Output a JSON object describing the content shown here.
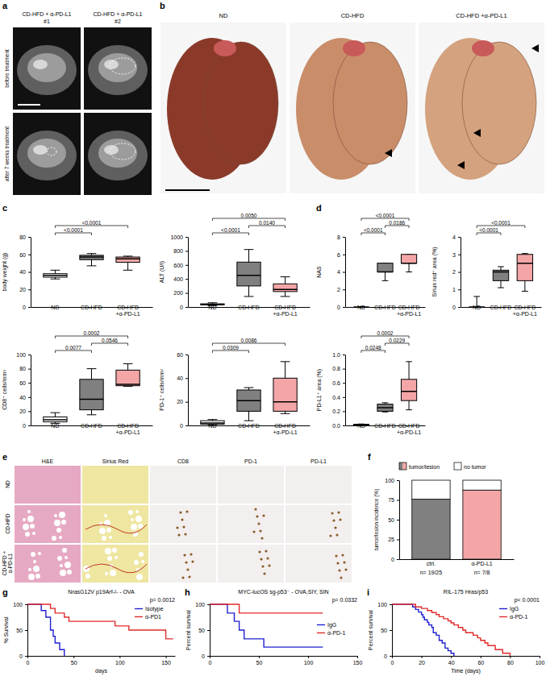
{
  "panel_letters": [
    "a",
    "b",
    "c",
    "d",
    "e",
    "f",
    "g",
    "h",
    "i"
  ],
  "panel_a": {
    "columns": [
      {
        "title": "CD-HFD + α-PD-L1",
        "id": "#1"
      },
      {
        "title": "CD-HFD + α-PD-L1",
        "id": "#2"
      }
    ],
    "rows": [
      "before treatment",
      "after 7 weeks treatment"
    ]
  },
  "panel_b": {
    "labels": [
      "ND",
      "CD-HFD",
      "CD-HFD +α-PD-L1"
    ]
  },
  "panel_e": {
    "columns": [
      "H&E",
      "Sirius Red",
      "CD8",
      "PD-1",
      "PD-L1"
    ],
    "rows": [
      "ND",
      "CD-HFD",
      "CD-HFD + α-PD-L1"
    ]
  },
  "chart_data": [
    {
      "type": "box",
      "y_label": "body weight (g)",
      "categories": [
        "ND",
        "CD-HFD",
        "CD-HFD +α-PD-L1"
      ],
      "colors": [
        "#ffffff",
        "#808080",
        "#f4a6a6"
      ],
      "boxes": [
        {
          "min": 32,
          "q1": 34,
          "median": 36,
          "q3": 38,
          "max": 42
        },
        {
          "min": 47,
          "q1": 54,
          "median": 57,
          "q3": 59,
          "max": 61
        },
        {
          "min": 42,
          "q1": 51,
          "median": 55,
          "q3": 57,
          "max": 58
        }
      ],
      "ylim": [
        0,
        80
      ],
      "yticks": [
        0,
        20,
        40,
        60,
        80
      ],
      "comparisons": [
        {
          "pair": [
            0,
            1
          ],
          "label": "<0.0001"
        },
        {
          "pair": [
            0,
            2
          ],
          "label": "<0.0001"
        }
      ]
    },
    {
      "type": "box",
      "y_label": "ALT (U/l)",
      "categories": [
        "ND",
        "CD-HFD",
        "CD-HFD +α-PD-L1"
      ],
      "colors": [
        "#ffffff",
        "#808080",
        "#f4a6a6"
      ],
      "boxes": [
        {
          "min": 20,
          "q1": 30,
          "median": 38,
          "q3": 45,
          "max": 60
        },
        {
          "min": 150,
          "q1": 300,
          "median": 450,
          "q3": 640,
          "max": 820
        },
        {
          "min": 150,
          "q1": 220,
          "median": 250,
          "q3": 330,
          "max": 430
        }
      ],
      "ylim": [
        0,
        1000
      ],
      "yticks": [
        0,
        200,
        400,
        600,
        800,
        1000
      ],
      "comparisons": [
        {
          "pair": [
            0,
            1
          ],
          "label": "<0.0001"
        },
        {
          "pair": [
            1,
            2
          ],
          "label": "0.0140"
        },
        {
          "pair": [
            0,
            2
          ],
          "label": "0.0050"
        }
      ]
    },
    {
      "type": "box",
      "y_label": "CD8⁺ cells/mm²",
      "categories": [
        "ND",
        "CD-HFD",
        "CD-HFD +α-PD-L1"
      ],
      "colors": [
        "#ffffff",
        "#808080",
        "#f4a6a6"
      ],
      "boxes": [
        {
          "min": 3,
          "q1": 5,
          "median": 8,
          "q3": 12,
          "max": 18
        },
        {
          "min": 15,
          "q1": 22,
          "median": 37,
          "q3": 65,
          "max": 80
        },
        {
          "min": 55,
          "q1": 56,
          "median": 58,
          "q3": 78,
          "max": 87
        }
      ],
      "ylim": [
        0,
        100
      ],
      "yticks": [
        0,
        20,
        40,
        60,
        80,
        100
      ],
      "comparisons": [
        {
          "pair": [
            0,
            1
          ],
          "label": "0.0077"
        },
        {
          "pair": [
            1,
            2
          ],
          "label": "0.0546"
        },
        {
          "pair": [
            0,
            2
          ],
          "label": "0.0002"
        }
      ]
    },
    {
      "type": "box",
      "y_label": "PD-1⁺ cells/mm²",
      "categories": [
        "ND",
        "CD-HFD",
        "CD-HFD +α-PD-L1"
      ],
      "colors": [
        "#ffffff",
        "#808080",
        "#f4a6a6"
      ],
      "boxes": [
        {
          "min": 0,
          "q1": 1,
          "median": 2,
          "q3": 4,
          "max": 5
        },
        {
          "min": 4,
          "q1": 12,
          "median": 21,
          "q3": 30,
          "max": 32
        },
        {
          "min": 10,
          "q1": 12,
          "median": 20,
          "q3": 40,
          "max": 54
        }
      ],
      "ylim": [
        0,
        60
      ],
      "yticks": [
        0,
        20,
        40,
        60
      ],
      "comparisons": [
        {
          "pair": [
            0,
            1
          ],
          "label": "0.0309"
        },
        {
          "pair": [
            0,
            2
          ],
          "label": "0.0086"
        }
      ]
    },
    {
      "type": "box",
      "y_label": "NAS",
      "categories": [
        "ND",
        "CD-HFD",
        "CD-HFD +α-PD-L1"
      ],
      "colors": [
        "#ffffff",
        "#808080",
        "#f4a6a6"
      ],
      "boxes": [
        {
          "min": 0,
          "q1": 0,
          "median": 0,
          "q3": 0,
          "max": 0
        },
        {
          "min": 3,
          "q1": 4,
          "median": 4,
          "q3": 5,
          "max": 5
        },
        {
          "min": 4,
          "q1": 5,
          "median": 5,
          "q3": 6,
          "max": 6
        }
      ],
      "ylim": [
        0,
        8
      ],
      "yticks": [
        0,
        2,
        4,
        6,
        8
      ],
      "comparisons": [
        {
          "pair": [
            0,
            1
          ],
          "label": "<0.0001"
        },
        {
          "pair": [
            1,
            2
          ],
          "label": "0.0186"
        },
        {
          "pair": [
            0,
            2
          ],
          "label": "<0.0001"
        }
      ]
    },
    {
      "type": "box",
      "y_label": "Sirius red⁺ area (%)",
      "categories": [
        "ND",
        "CD-HFD",
        "CD-HFD +α-PD-L1"
      ],
      "colors": [
        "#ffffff",
        "#808080",
        "#f4a6a6"
      ],
      "boxes": [
        {
          "min": 0,
          "q1": 0,
          "median": 0,
          "q3": 0,
          "max": 0.6
        },
        {
          "min": 1.1,
          "q1": 1.5,
          "median": 2.0,
          "q3": 2.1,
          "max": 2.3
        },
        {
          "min": 0.9,
          "q1": 1.5,
          "median": 2.5,
          "q3": 3.0,
          "max": 3.05
        }
      ],
      "ylim": [
        0,
        4
      ],
      "yticks": [
        0,
        1,
        2,
        3,
        4
      ],
      "comparisons": [
        {
          "pair": [
            0,
            1
          ],
          "label": "<0.0001"
        },
        {
          "pair": [
            0,
            2
          ],
          "label": "<0.0001"
        }
      ]
    },
    {
      "type": "box",
      "y_label": "PD-L1⁺ area (%)",
      "categories": [
        "ND",
        "CD-HFD",
        "CD-HFD +α-PD-L1"
      ],
      "colors": [
        "#ffffff",
        "#808080",
        "#f4a6a6"
      ],
      "boxes": [
        {
          "min": 0,
          "q1": 0.005,
          "median": 0.01,
          "q3": 0.015,
          "max": 0.02
        },
        {
          "min": 0.19,
          "q1": 0.2,
          "median": 0.25,
          "q3": 0.3,
          "max": 0.32
        },
        {
          "min": 0.22,
          "q1": 0.35,
          "median": 0.48,
          "q3": 0.65,
          "max": 0.9
        }
      ],
      "ylim": [
        0,
        1
      ],
      "yticks": [
        {
          "value": 0,
          "label": "0.0"
        },
        0.2,
        0.4,
        0.6,
        0.8,
        {
          "value": 1,
          "label": "1.0"
        }
      ],
      "comparisons": [
        {
          "pair": [
            0,
            1
          ],
          "label": "0.0248"
        },
        {
          "pair": [
            1,
            2
          ],
          "label": "0.0229"
        },
        {
          "pair": [
            0,
            2
          ],
          "label": "0.0002"
        }
      ]
    },
    {
      "type": "bar",
      "stacked": true,
      "legend": "top",
      "y_label": "tumor/lesion incidence (%)",
      "categories": [
        "ctrl.",
        "α-PD-L1"
      ],
      "annotations": [
        "n= 19/25",
        "n= 7/8"
      ],
      "series": [
        {
          "name": "tumor/lesion",
          "colors": [
            "#808080",
            "#f4a6a6"
          ],
          "values": [
            76,
            87.5
          ]
        },
        {
          "name": "no tumor",
          "color": "#ffffff",
          "values": [
            24,
            12.5
          ]
        }
      ],
      "ylim": [
        0,
        100
      ],
      "yticks": [
        0,
        25,
        50,
        75,
        100
      ]
    },
    {
      "type": "line",
      "line_style": "step",
      "legend": "top-right",
      "title": "NrasG12V p19Arf-/- - OVA",
      "annotation": "p= 0.0012",
      "x_label": "days",
      "y_label": "% Survival",
      "xlim": [
        0,
        160
      ],
      "xticks": [
        0,
        50,
        100,
        150
      ],
      "ylim": [
        0,
        100
      ],
      "yticks": [
        0,
        50,
        100
      ],
      "series": [
        {
          "name": "Isotype",
          "color": "#1f1fd1",
          "x": [
            0,
            15,
            20,
            25,
            28,
            30,
            35,
            40
          ],
          "values": [
            100,
            88,
            75,
            50,
            38,
            25,
            12,
            0
          ]
        },
        {
          "name": "α-PD1",
          "color": "#e02a2a",
          "x": [
            0,
            25,
            30,
            40,
            45,
            95,
            110,
            150,
            158
          ],
          "values": [
            100,
            92,
            83,
            75,
            67,
            58,
            50,
            33,
            33
          ]
        }
      ]
    },
    {
      "type": "line",
      "line_style": "step",
      "legend": "right",
      "title": "MYC-lucOS sg-p53⁻ - OVA,SIY, SIN",
      "annotation": "p= 0.0332",
      "y_label": "Percent survival",
      "xlim": [
        0,
        150
      ],
      "xticks": [
        0,
        50,
        100,
        150
      ],
      "ylim": [
        0,
        100
      ],
      "yticks": [
        0,
        50,
        100
      ],
      "series": [
        {
          "name": "IgG",
          "color": "#1f1fd1",
          "x": [
            0,
            18,
            25,
            30,
            35,
            55,
            115
          ],
          "values": [
            100,
            83,
            67,
            50,
            33,
            17,
            17
          ]
        },
        {
          "name": "α-PD-1",
          "color": "#e02a2a",
          "x": [
            0,
            30,
            115
          ],
          "values": [
            100,
            83,
            83
          ]
        }
      ]
    },
    {
      "type": "line",
      "line_style": "step",
      "legend": "top-right",
      "title": "RIL-175 Hras/p53",
      "annotation": "p< 0.0001",
      "x_label": "Time (days)",
      "y_label": "Percent survival",
      "xlim": [
        0,
        100
      ],
      "xticks": [
        0,
        20,
        40,
        60,
        80,
        100
      ],
      "ylim": [
        0,
        100
      ],
      "yticks": [
        0,
        50,
        100
      ],
      "series": [
        {
          "name": "IgG",
          "color": "#1f1fd1",
          "x": [
            0,
            14,
            16,
            18,
            20,
            21,
            22,
            24,
            25,
            27,
            28,
            30,
            32,
            34,
            36,
            38,
            40,
            42
          ],
          "values": [
            100,
            95,
            90,
            85,
            80,
            75,
            70,
            65,
            60,
            55,
            45,
            40,
            30,
            25,
            15,
            10,
            5,
            0
          ]
        },
        {
          "name": "α-PD-1",
          "color": "#e02a2a",
          "x": [
            0,
            16,
            20,
            24,
            27,
            30,
            32,
            35,
            38,
            40,
            42,
            45,
            48,
            50,
            55,
            58,
            60,
            63,
            65,
            70,
            75,
            80
          ],
          "values": [
            100,
            95,
            92,
            88,
            84,
            80,
            76,
            72,
            68,
            64,
            60,
            55,
            50,
            45,
            40,
            35,
            30,
            25,
            20,
            12,
            5,
            0
          ]
        }
      ]
    }
  ]
}
